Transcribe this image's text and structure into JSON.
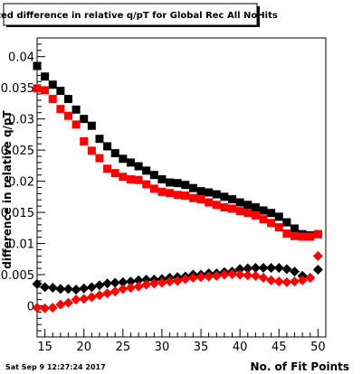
{
  "chart_data": {
    "type": "scatter",
    "title": "Fitted difference in relative q/pT for Global Rec All NoHits",
    "xlabel": "No. of Fit Points",
    "ylabel": "difference in relative q/pT",
    "xlim": [
      14,
      51
    ],
    "ylim": [
      -0.005,
      0.043
    ],
    "x_ticks": [
      15,
      20,
      25,
      30,
      35,
      40,
      45,
      50
    ],
    "x_tick_labels": [
      "15",
      "20",
      "25",
      "30",
      "35",
      "40",
      "45",
      "50"
    ],
    "y_ticks": [
      0,
      0.005,
      0.01,
      0.015,
      0.02,
      0.025,
      0.03,
      0.035,
      0.04
    ],
    "y_tick_labels": [
      "0",
      "0.005",
      "0.01",
      "0.015",
      "0.02",
      "0.025",
      "0.03",
      "0.035",
      "0.04"
    ],
    "grid": false,
    "footer": "Sat Sep  9 12:27:24 2017",
    "series": [
      {
        "marker": "square",
        "color": "#000000",
        "x": [
          14,
          15,
          16,
          17,
          18,
          19,
          20,
          21,
          22,
          23,
          24,
          25,
          26,
          27,
          28,
          29,
          30,
          31,
          32,
          33,
          34,
          35,
          36,
          37,
          38,
          39,
          40,
          41,
          42,
          43,
          44,
          45,
          46,
          47,
          48,
          49,
          50
        ],
        "y": [
          0.0385,
          0.0368,
          0.0355,
          0.0345,
          0.0332,
          0.0315,
          0.03,
          0.0289,
          0.0268,
          0.0256,
          0.0245,
          0.0236,
          0.023,
          0.0224,
          0.0217,
          0.021,
          0.0203,
          0.0198,
          0.0197,
          0.0194,
          0.0189,
          0.0184,
          0.0182,
          0.0179,
          0.0175,
          0.0171,
          0.0166,
          0.0162,
          0.0158,
          0.0153,
          0.0149,
          0.0143,
          0.0134,
          0.0124,
          0.0115,
          0.0113,
          0.0115
        ]
      },
      {
        "marker": "square",
        "color": "#ff0000",
        "x": [
          14,
          15,
          16,
          17,
          18,
          19,
          20,
          21,
          22,
          23,
          24,
          25,
          26,
          27,
          28,
          29,
          30,
          31,
          32,
          33,
          34,
          35,
          36,
          37,
          38,
          39,
          40,
          41,
          42,
          43,
          44,
          45,
          46,
          47,
          48,
          49,
          50
        ],
        "y": [
          0.0349,
          0.0346,
          0.0332,
          0.0316,
          0.0305,
          0.0291,
          0.0264,
          0.0249,
          0.0237,
          0.022,
          0.0213,
          0.0207,
          0.0203,
          0.0202,
          0.0195,
          0.0188,
          0.0183,
          0.0181,
          0.0178,
          0.0177,
          0.0173,
          0.0171,
          0.0166,
          0.0162,
          0.0158,
          0.0156,
          0.0152,
          0.0149,
          0.0145,
          0.0139,
          0.0133,
          0.0126,
          0.0116,
          0.0112,
          0.0111,
          0.0111,
          0.0115
        ]
      },
      {
        "marker": "diamond",
        "color": "#000000",
        "x": [
          14,
          15,
          16,
          17,
          18,
          19,
          20,
          21,
          22,
          23,
          24,
          25,
          26,
          27,
          28,
          29,
          30,
          31,
          32,
          33,
          34,
          35,
          36,
          37,
          38,
          39,
          40,
          41,
          42,
          43,
          44,
          45,
          46,
          47,
          48,
          49,
          50
        ],
        "y": [
          0.0035,
          0.003,
          0.0029,
          0.0027,
          0.0027,
          0.0026,
          0.0028,
          0.003,
          0.0033,
          0.0036,
          0.0037,
          0.0038,
          0.0039,
          0.0041,
          0.0042,
          0.0042,
          0.0043,
          0.0045,
          0.0046,
          0.0047,
          0.005,
          0.005,
          0.0052,
          0.0052,
          0.0054,
          0.0055,
          0.0059,
          0.006,
          0.0061,
          0.0061,
          0.0061,
          0.0061,
          0.0059,
          0.0055,
          0.0048,
          0.0045,
          0.0058
        ]
      },
      {
        "marker": "diamond",
        "color": "#ff0000",
        "x": [
          14,
          15,
          16,
          17,
          18,
          19,
          20,
          21,
          22,
          23,
          24,
          25,
          26,
          27,
          28,
          29,
          30,
          31,
          32,
          33,
          34,
          35,
          36,
          37,
          38,
          39,
          40,
          41,
          42,
          43,
          44,
          45,
          46,
          47,
          48,
          49,
          50
        ],
        "y": [
          -0.0003,
          -0.0004,
          -0.0003,
          0.0002,
          0.0005,
          0.001,
          0.0011,
          0.0014,
          0.0017,
          0.002,
          0.0023,
          0.0027,
          0.0029,
          0.0031,
          0.0034,
          0.0036,
          0.0037,
          0.0039,
          0.004,
          0.0043,
          0.0045,
          0.0046,
          0.0047,
          0.0048,
          0.005,
          0.0051,
          0.005,
          0.0049,
          0.0048,
          0.0045,
          0.0041,
          0.0039,
          0.0038,
          0.0039,
          0.0041,
          0.0045,
          0.008
        ]
      }
    ]
  }
}
